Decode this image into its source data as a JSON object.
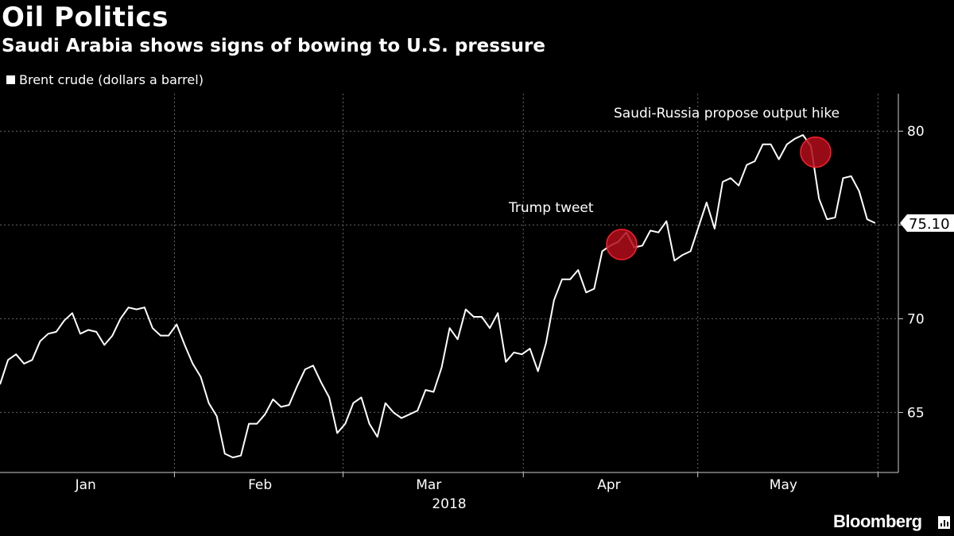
{
  "header": {
    "title": "Oil Politics",
    "subtitle": "Saudi Arabia shows signs of bowing to U.S. pressure"
  },
  "brand": {
    "name": "Bloomberg"
  },
  "chart_data": {
    "type": "line",
    "legend": {
      "label": "Brent crude (dollars a barrel)",
      "position": "top-left"
    },
    "y_axis": {
      "side": "right",
      "ticks": [
        65,
        70,
        75,
        80
      ],
      "range": [
        61.8,
        82
      ]
    },
    "x_axis": {
      "range_days": [
        0,
        146
      ],
      "month_labels": [
        {
          "label": "Jan",
          "day": 15
        },
        {
          "label": "Feb",
          "day": 45
        },
        {
          "label": "Mar",
          "day": 74
        },
        {
          "label": "Apr",
          "day": 105
        },
        {
          "label": "May",
          "day": 135
        }
      ],
      "month_boundaries": [
        30,
        59,
        90,
        120,
        151
      ],
      "year_label": "2018"
    },
    "last_value": {
      "label": "75.10",
      "value": 75.1
    },
    "annotations": [
      {
        "text": "Trump tweet",
        "date_day": 113,
        "value": 74.0
      },
      {
        "text": "Saudi-Russia propose output hike",
        "date_day": 148,
        "value": 78.8
      }
    ],
    "grid": true,
    "colors": {
      "line": "#ffffff",
      "marker": "#b00d1a",
      "background": "#000000",
      "grid": "#666666"
    },
    "series": [
      {
        "name": "Brent crude (dollars a barrel)",
        "points": [
          [
            0,
            66.5
          ],
          [
            1,
            67.8
          ],
          [
            2,
            68.1
          ],
          [
            3,
            67.6
          ],
          [
            4,
            67.8
          ],
          [
            5,
            68.8
          ],
          [
            6,
            69.2
          ],
          [
            7,
            69.3
          ],
          [
            8,
            69.9
          ],
          [
            9,
            70.3
          ],
          [
            10,
            69.2
          ],
          [
            11,
            69.4
          ],
          [
            12,
            69.3
          ],
          [
            13,
            68.6
          ],
          [
            14,
            69.1
          ],
          [
            15,
            70.0
          ],
          [
            16,
            70.6
          ],
          [
            17,
            70.5
          ],
          [
            18,
            70.6
          ],
          [
            19,
            69.5
          ],
          [
            20,
            69.1
          ],
          [
            21,
            69.1
          ],
          [
            22,
            69.7
          ],
          [
            23,
            68.6
          ],
          [
            24,
            67.6
          ],
          [
            25,
            66.9
          ],
          [
            26,
            65.5
          ],
          [
            27,
            64.8
          ],
          [
            28,
            62.8
          ],
          [
            29,
            62.6
          ],
          [
            30,
            62.7
          ],
          [
            31,
            64.4
          ],
          [
            32,
            64.4
          ],
          [
            33,
            64.9
          ],
          [
            34,
            65.7
          ],
          [
            35,
            65.3
          ],
          [
            36,
            65.4
          ],
          [
            37,
            66.4
          ],
          [
            38,
            67.3
          ],
          [
            39,
            67.5
          ],
          [
            40,
            66.6
          ],
          [
            41,
            65.8
          ],
          [
            42,
            63.9
          ],
          [
            43,
            64.4
          ],
          [
            44,
            65.5
          ],
          [
            45,
            65.8
          ],
          [
            46,
            64.4
          ],
          [
            47,
            63.7
          ],
          [
            48,
            65.5
          ],
          [
            49,
            65.0
          ],
          [
            50,
            64.7
          ],
          [
            51,
            64.9
          ],
          [
            52,
            65.1
          ],
          [
            53,
            66.2
          ],
          [
            54,
            66.1
          ],
          [
            55,
            67.4
          ],
          [
            56,
            69.5
          ],
          [
            57,
            68.9
          ],
          [
            58,
            70.5
          ],
          [
            59,
            70.1
          ],
          [
            60,
            70.1
          ],
          [
            61,
            69.5
          ],
          [
            62,
            70.3
          ],
          [
            63,
            67.7
          ],
          [
            64,
            68.2
          ],
          [
            65,
            68.1
          ],
          [
            66,
            68.4
          ],
          [
            67,
            67.2
          ],
          [
            68,
            68.7
          ],
          [
            69,
            71.0
          ],
          [
            70,
            72.1
          ],
          [
            71,
            72.1
          ],
          [
            72,
            72.6
          ],
          [
            73,
            71.4
          ],
          [
            74,
            71.6
          ],
          [
            75,
            73.6
          ],
          [
            76,
            73.9
          ],
          [
            77,
            74.1
          ],
          [
            78,
            74.6
          ],
          [
            79,
            73.8
          ],
          [
            80,
            73.9
          ],
          [
            81,
            74.7
          ],
          [
            82,
            74.6
          ],
          [
            83,
            75.2
          ],
          [
            84,
            73.1
          ],
          [
            85,
            73.4
          ],
          [
            86,
            73.6
          ],
          [
            87,
            74.9
          ],
          [
            88,
            76.2
          ],
          [
            89,
            74.8
          ],
          [
            90,
            77.3
          ],
          [
            91,
            77.5
          ],
          [
            92,
            77.1
          ],
          [
            93,
            78.2
          ],
          [
            94,
            78.4
          ],
          [
            95,
            79.3
          ],
          [
            96,
            79.3
          ],
          [
            97,
            78.5
          ],
          [
            98,
            79.3
          ],
          [
            99,
            79.6
          ],
          [
            100,
            79.8
          ],
          [
            101,
            79.2
          ],
          [
            102,
            76.4
          ],
          [
            103,
            75.3
          ],
          [
            104,
            75.4
          ],
          [
            105,
            77.5
          ],
          [
            106,
            77.6
          ],
          [
            107,
            76.8
          ],
          [
            108,
            75.3
          ],
          [
            109,
            75.1
          ]
        ]
      }
    ]
  }
}
